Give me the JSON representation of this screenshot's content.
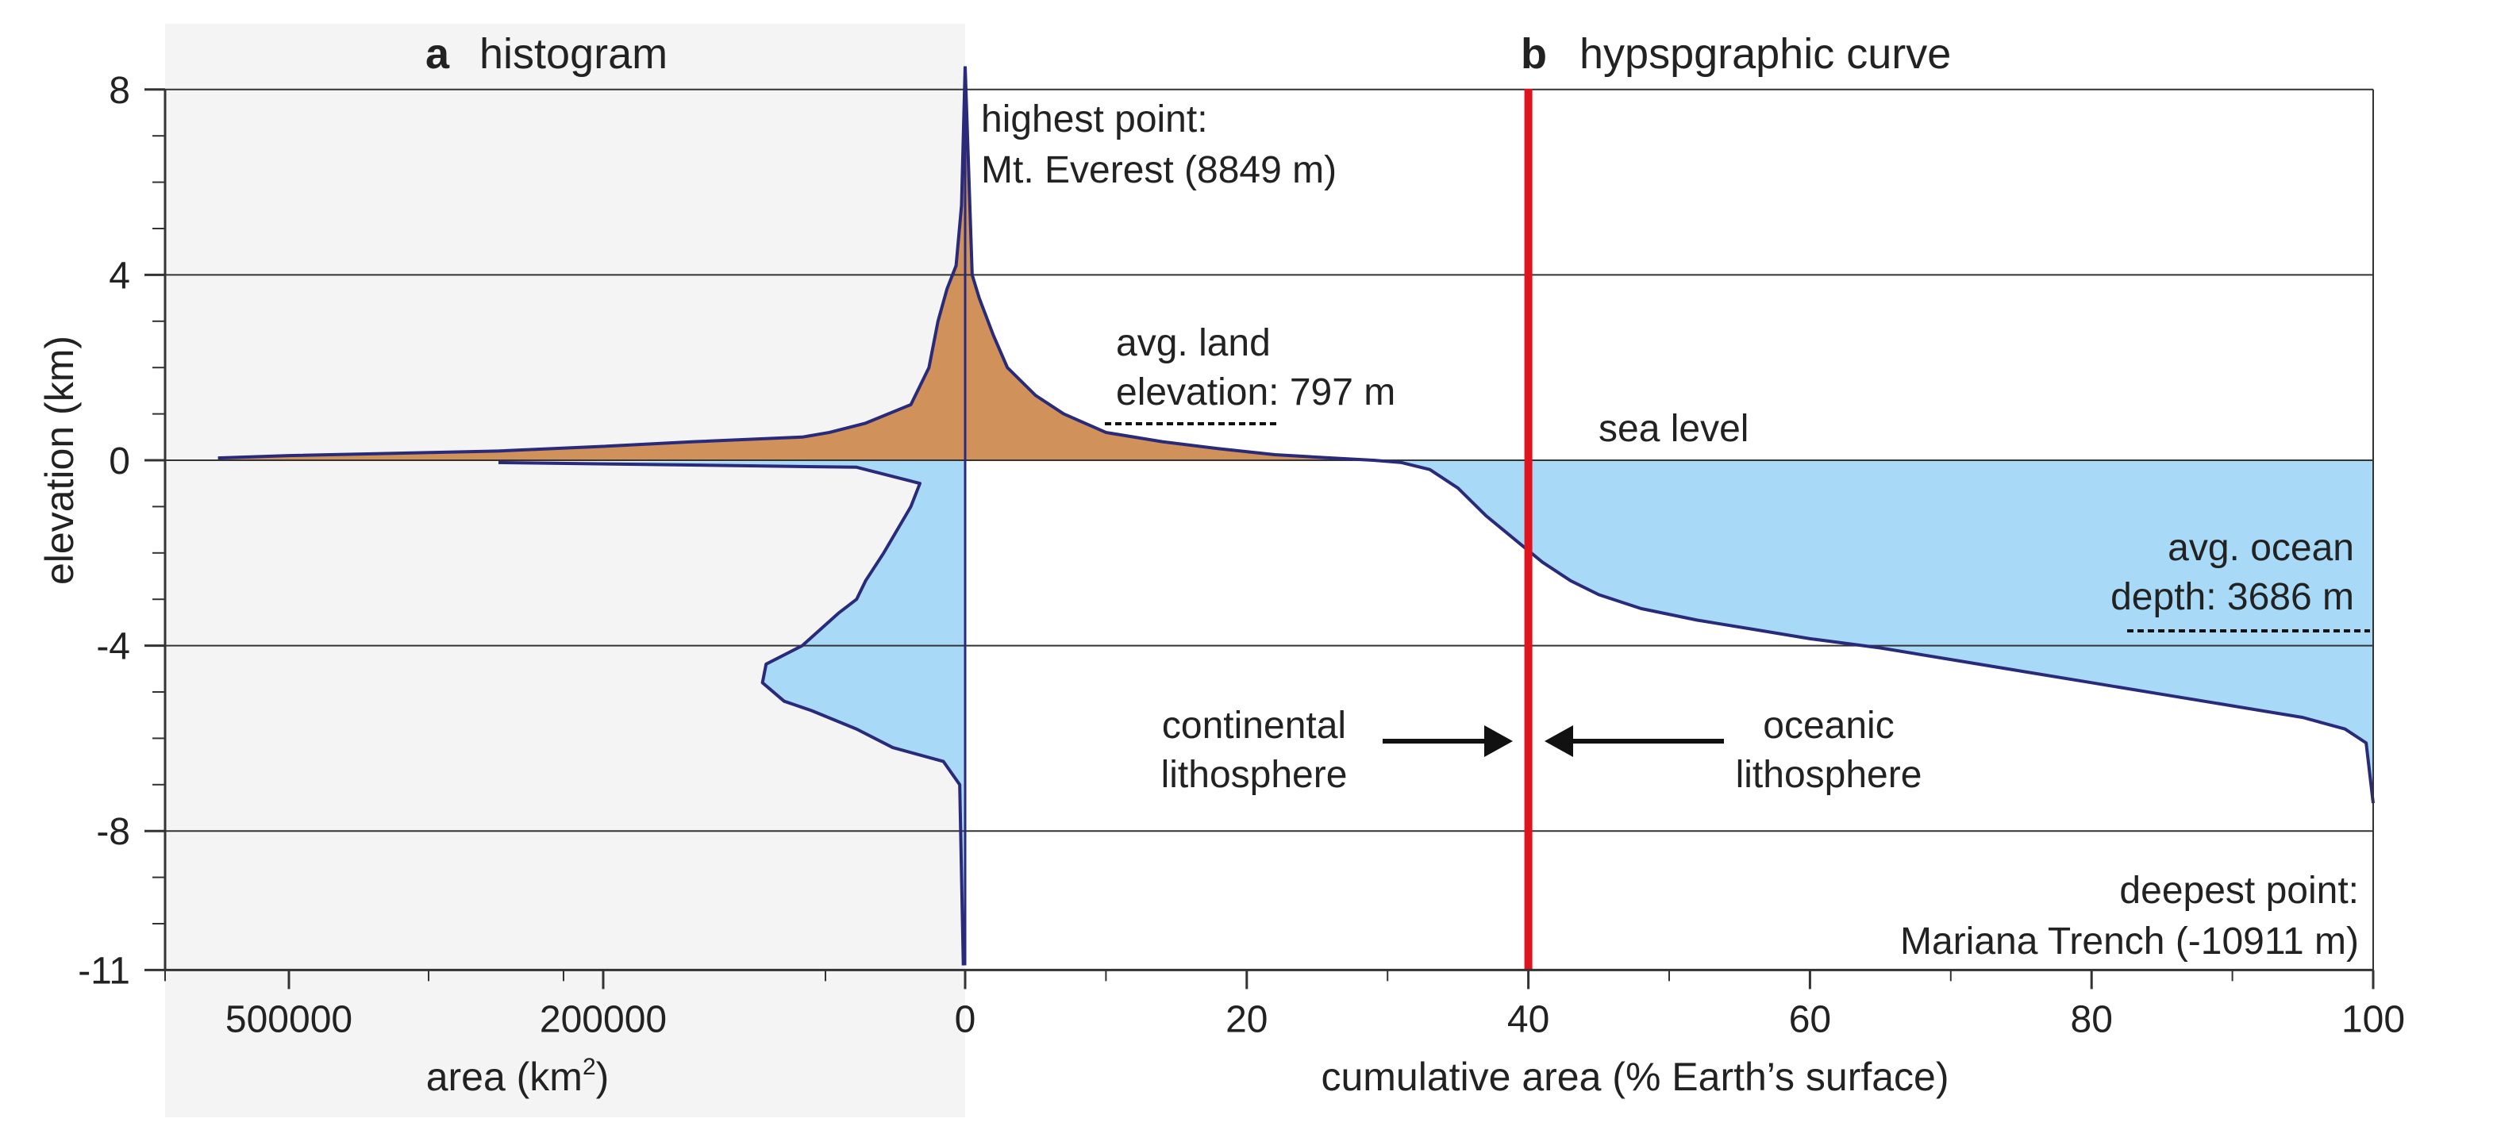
{
  "panels": {
    "a": {
      "letter": "a",
      "title": "histogram"
    },
    "b": {
      "letter": "b",
      "title": "hypspgraphic curve"
    }
  },
  "colors": {
    "land": "#d0925a",
    "ocean": "#a8daf7",
    "outline": "#2a2a7a",
    "marker": "#e0141e",
    "panel_a_bg": "#f4f4f4",
    "grid": "#333333"
  },
  "chart_data": [
    {
      "type": "area",
      "panel": "a",
      "xlabel_prefix": "area (km",
      "xlabel_sup": "2",
      "xlabel_suffix": ")",
      "ylabel": "elevation (km)",
      "ylim": [
        -11,
        8
      ],
      "xticks": [
        {
          "label": "500000",
          "x": 500000
        },
        {
          "label": "200000",
          "x": 200000
        },
        {
          "label": "0",
          "x": 0
        }
      ],
      "x_scale": "nonlinear",
      "land_profile": {
        "elevation_km": [
          8.5,
          5.5,
          4.2,
          3.7,
          3.0,
          2.0,
          1.2,
          0.8,
          0.6,
          0.5,
          0.4,
          0.3,
          0.2,
          0.1,
          0.05
        ],
        "area_km2": [
          3,
          2000,
          5000,
          10000,
          15000,
          20000,
          30000,
          55000,
          75000,
          90000,
          150000,
          200000,
          300000,
          500000,
          600000
        ]
      },
      "ocean_profile": {
        "elevation_km": [
          -0.05,
          -0.15,
          -0.5,
          -1.0,
          -2.0,
          -2.6,
          -3.0,
          -3.3,
          -4.0,
          -4.4,
          -4.8,
          -5.2,
          -5.4,
          -5.8,
          -6.2,
          -6.5,
          -7.0,
          -10.9
        ],
        "area_km2": [
          300000,
          60000,
          25000,
          30000,
          45000,
          55000,
          60000,
          70000,
          90000,
          110000,
          112000,
          100000,
          85000,
          60000,
          40000,
          12000,
          3000,
          1000
        ]
      }
    },
    {
      "type": "area",
      "panel": "b",
      "xlabel": "cumulative area (% Earth’s surface)",
      "xlim": [
        0,
        100
      ],
      "ylim": [
        -11,
        8
      ],
      "xticks": [
        0,
        20,
        40,
        60,
        80,
        100
      ],
      "yticks": [
        8,
        4,
        0,
        -4,
        -8,
        -11
      ],
      "land_curve": {
        "x": [
          0,
          0.5,
          1,
          2,
          3,
          5,
          7,
          10,
          14,
          18,
          22,
          26,
          29
        ],
        "y": [
          8.5,
          4.0,
          3.5,
          2.7,
          2.0,
          1.4,
          1.0,
          0.6,
          0.4,
          0.25,
          0.12,
          0.05,
          0
        ]
      },
      "ocean_curve": {
        "x": [
          29,
          31,
          33,
          35,
          37,
          39,
          41,
          43,
          45,
          48,
          52,
          56,
          60,
          65,
          70,
          75,
          80,
          85,
          90,
          95,
          98,
          99.5,
          100
        ],
        "y": [
          0,
          -0.05,
          -0.2,
          -0.6,
          -1.2,
          -1.7,
          -2.2,
          -2.6,
          -2.9,
          -3.2,
          -3.45,
          -3.65,
          -3.85,
          -4.05,
          -4.3,
          -4.55,
          -4.8,
          -5.05,
          -5.3,
          -5.55,
          -5.8,
          -6.1,
          -7.4
        ]
      },
      "divider_x": 40,
      "avg_ocean_depth_km": -3.686,
      "avg_land_elevation_km": 0.797
    }
  ],
  "annotations": {
    "highest": {
      "line1": "highest point:",
      "line2": "Mt. Everest (8849 m)"
    },
    "avg_land": {
      "line1": "avg. land",
      "line2": "elevation: 797 m"
    },
    "sea_level": "sea level",
    "avg_ocean": {
      "line1": "avg. ocean",
      "line2": "depth: 3686 m"
    },
    "continental": {
      "line1": "continental",
      "line2": "lithosphere"
    },
    "oceanic": {
      "line1": "oceanic",
      "line2": "lithosphere"
    },
    "deepest": {
      "line1": "deepest point:",
      "line2": "Mariana Trench (-10911 m)"
    }
  }
}
